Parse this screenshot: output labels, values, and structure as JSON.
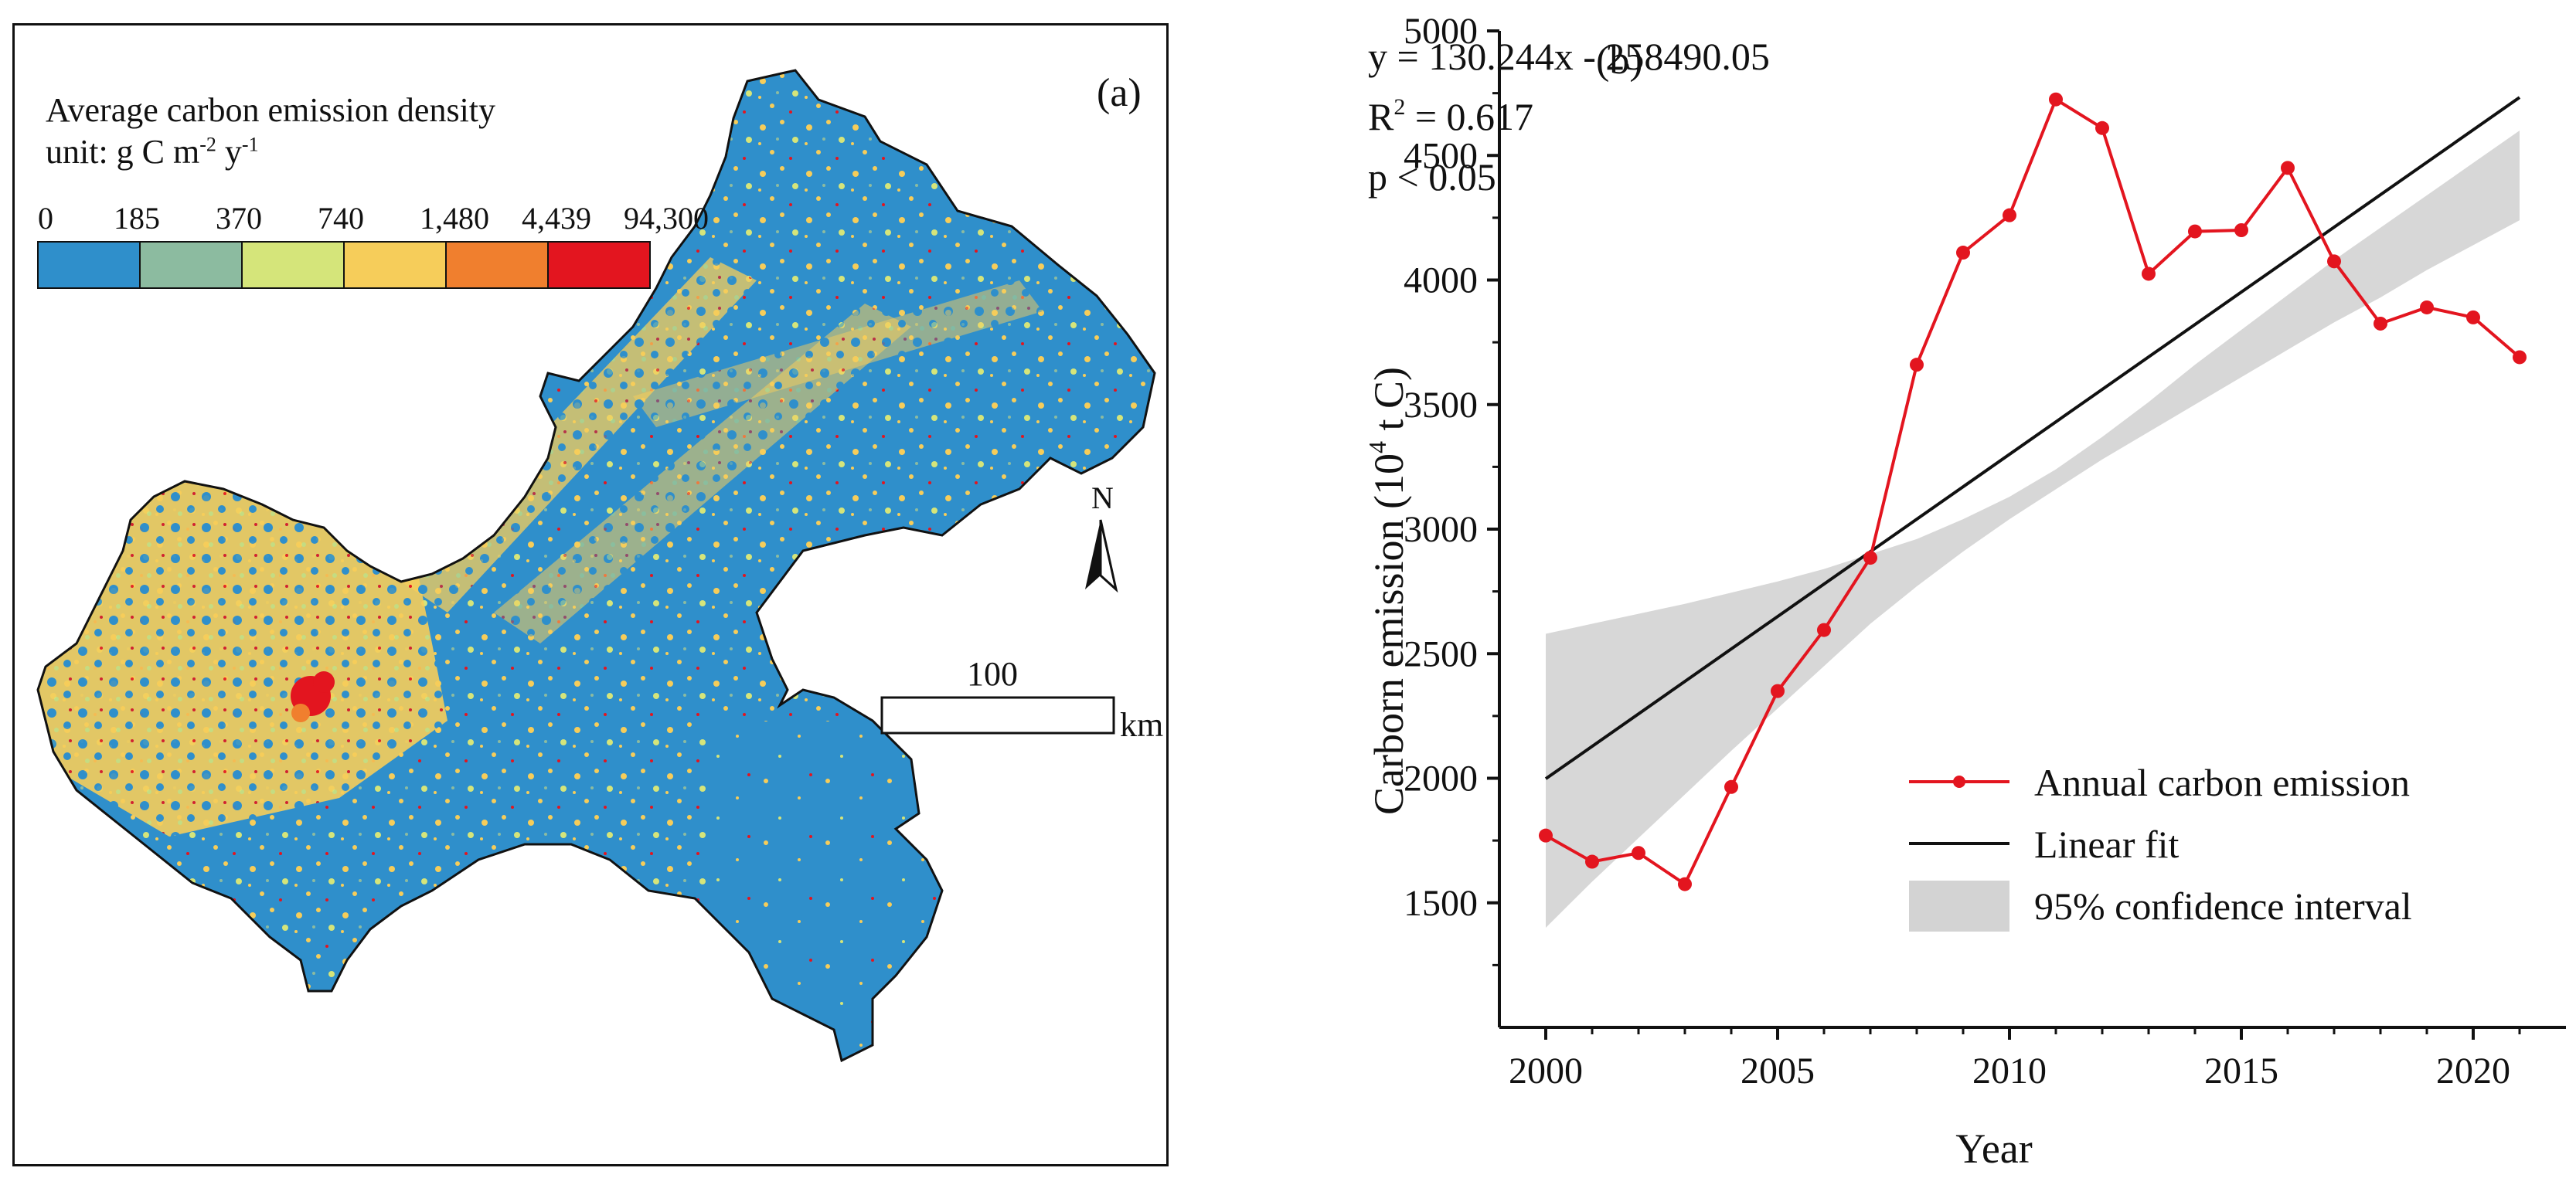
{
  "panel_a": {
    "label": "(a)",
    "legend_title": "Average carbon emission density",
    "legend_unit_prefix": "unit: g C m",
    "legend_unit_exp1": "-2",
    "legend_unit_mid": " y",
    "legend_unit_exp2": "-1",
    "legend_breaks": [
      "0",
      "185",
      "370",
      "740",
      "1,480",
      "4,439",
      "94,300"
    ],
    "legend_colors": [
      "#2f8fcb",
      "#8cbba0",
      "#d5e57a",
      "#f6cd5a",
      "#f07f2e",
      "#e3151f"
    ],
    "north_label": "N",
    "scale_label": "100",
    "scale_unit": "km"
  },
  "chart_data": {
    "type": "line",
    "panel_label": "(b)",
    "equation": "y = 130.244x - 258490.05",
    "r2_prefix": "R",
    "r2_exp": "2",
    "r2_suffix": " = 0.617",
    "pvalue": "p < 0.05",
    "xlabel": "Year",
    "ylabel_prefix": "Carborn emission (10",
    "ylabel_exp": "4",
    "ylabel_suffix": " t C)",
    "xlim": [
      2000,
      2021
    ],
    "ylim": [
      1000,
      5000
    ],
    "xticks": [
      2000,
      2005,
      2010,
      2015,
      2020
    ],
    "yticks": [
      1500,
      2000,
      2500,
      3000,
      3500,
      4000,
      4500,
      5000
    ],
    "x": [
      2000,
      2001,
      2002,
      2003,
      2004,
      2005,
      2006,
      2007,
      2008,
      2009,
      2010,
      2011,
      2012,
      2013,
      2014,
      2015,
      2016,
      2017,
      2018,
      2019,
      2020,
      2021
    ],
    "series": [
      {
        "name": "Annual carbon emission",
        "color": "#e3151f",
        "values": [
          1770,
          1665,
          1700,
          1575,
          1965,
          2350,
          2595,
          2885,
          3660,
          4110,
          4260,
          4725,
          4610,
          4025,
          4195,
          4200,
          4450,
          4075,
          3825,
          3890,
          3850,
          3690
        ]
      }
    ],
    "fit": {
      "name": "Linear fit",
      "color": "#111111",
      "slope": 130.244,
      "intercept": -258490.05
    },
    "confidence_interval": {
      "name": "95% confidence interval",
      "color": "#d3d3d3",
      "lower": [
        1400,
        1585,
        1760,
        1935,
        2110,
        2280,
        2450,
        2620,
        2770,
        2910,
        3040,
        3160,
        3280,
        3390,
        3500,
        3610,
        3720,
        3830,
        3930,
        4040,
        4140,
        4240
      ],
      "upper": [
        2580,
        2620,
        2660,
        2700,
        2745,
        2790,
        2840,
        2900,
        2960,
        3040,
        3130,
        3240,
        3370,
        3510,
        3660,
        3800,
        3940,
        4080,
        4210,
        4340,
        4470,
        4600
      ]
    },
    "legend_position": "bottom-right",
    "grid": false
  }
}
